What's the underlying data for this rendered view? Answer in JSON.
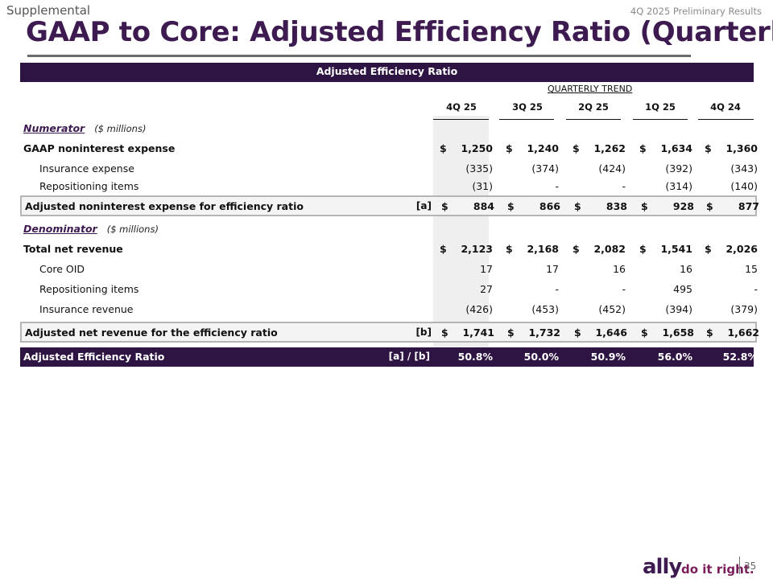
{
  "header": {
    "supplemental": "Supplemental",
    "report": "4Q 2025 Preliminary Results",
    "title": "GAAP to Core: Adjusted Efficiency Ratio (Quarterly)"
  },
  "table": {
    "banner": "Adjusted Efficiency Ratio",
    "trend_label": "QUARTERLY TREND",
    "columns": [
      "4Q 25",
      "3Q 25",
      "2Q 25",
      "1Q 25",
      "4Q 24"
    ],
    "numerator": {
      "label": "Numerator",
      "unit": "($ millions)"
    },
    "denominator": {
      "label": "Denominator",
      "unit": "($ millions)"
    },
    "rows": {
      "gaap_nie": {
        "label": "GAAP noninterest expense",
        "values": [
          "1,250",
          "1,240",
          "1,262",
          "1,634",
          "1,360"
        ]
      },
      "insurance_expense": {
        "label": "Insurance expense",
        "values": [
          "(335)",
          "(374)",
          "(424)",
          "(392)",
          "(343)"
        ]
      },
      "repositioning_exp": {
        "label": "Repositioning items",
        "values": [
          "(31)",
          "-",
          "-",
          "(314)",
          "(140)"
        ]
      },
      "adj_nie": {
        "label": "Adjusted noninterest expense for efficiency ratio",
        "ref": "[a]",
        "values": [
          "884",
          "866",
          "838",
          "928",
          "877"
        ]
      },
      "total_rev": {
        "label": "Total net revenue",
        "values": [
          "2,123",
          "2,168",
          "2,082",
          "1,541",
          "2,026"
        ]
      },
      "core_oid": {
        "label": "Core OID",
        "values": [
          "17",
          "17",
          "16",
          "16",
          "15"
        ]
      },
      "repositioning_rev": {
        "label": "Repositioning items",
        "values": [
          "27",
          "-",
          "-",
          "495",
          "-"
        ]
      },
      "insurance_rev": {
        "label": "Insurance revenue",
        "values": [
          "(426)",
          "(453)",
          "(452)",
          "(394)",
          "(379)"
        ]
      },
      "adj_rev": {
        "label": "Adjusted net revenue for the efficiency ratio",
        "ref": "[b]",
        "values": [
          "1,741",
          "1,732",
          "1,646",
          "1,658",
          "1,662"
        ]
      },
      "ratio": {
        "label": "Adjusted Efficiency Ratio",
        "ref": "[a] / [b]",
        "values": [
          "50.8%",
          "50.0%",
          "50.9%",
          "56.0%",
          "52.8%"
        ]
      }
    },
    "currency_symbol": "$"
  },
  "footer": {
    "logo": "ally",
    "tagline": "do it right.",
    "page_number": "35"
  },
  "colors": {
    "brand_purple": "#2e1442",
    "title_purple": "#3d1a4f",
    "tagline_plum": "#7a1e5a"
  }
}
